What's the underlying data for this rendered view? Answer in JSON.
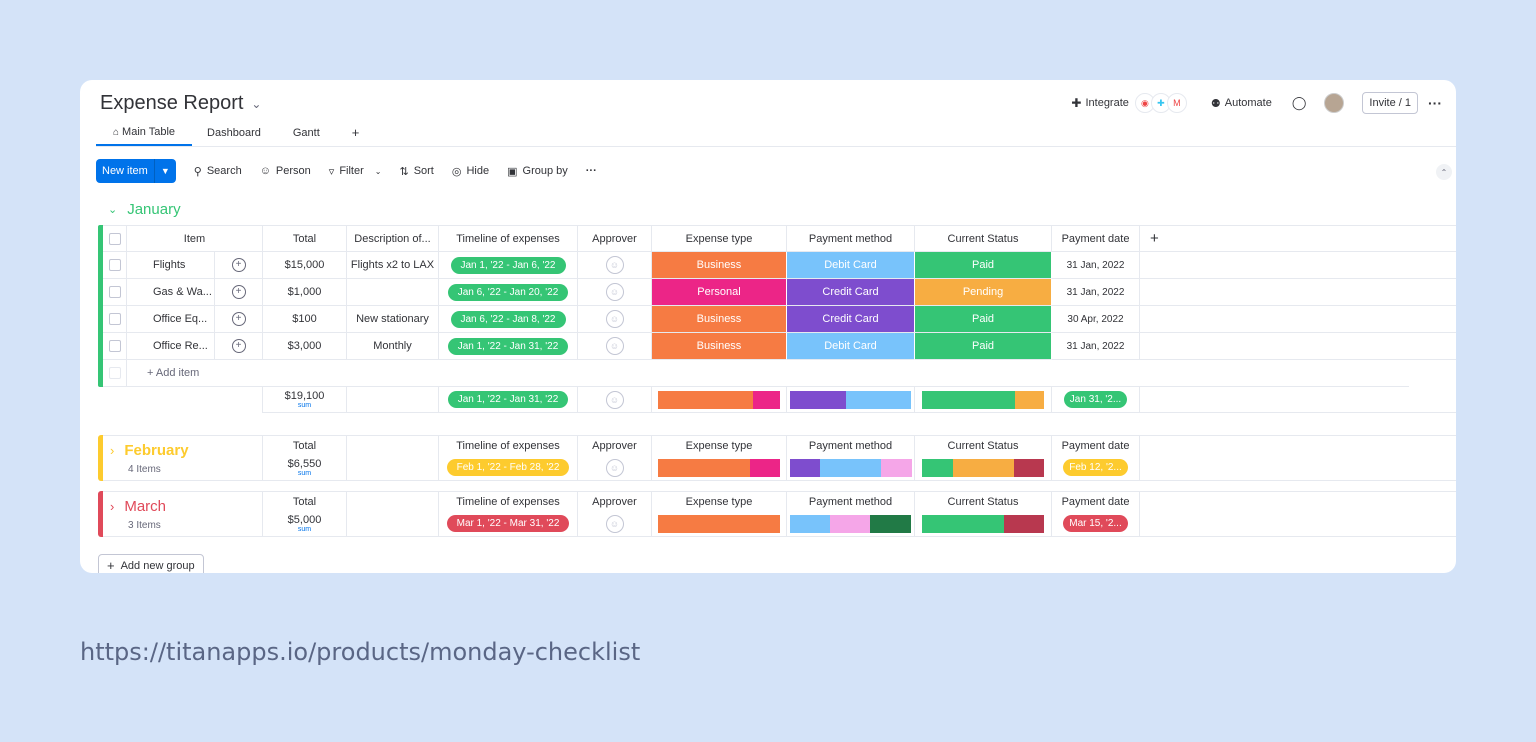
{
  "board": {
    "title": "Expense Report",
    "tabs": [
      "Main Table",
      "Dashboard",
      "Gantt",
      "+"
    ],
    "integrate_label": "Integrate",
    "automate_label": "Automate",
    "invite_label": "Invite / 1"
  },
  "toolbar": {
    "new_item": "New item",
    "search": "Search",
    "person": "Person",
    "filter": "Filter",
    "sort": "Sort",
    "hide": "Hide",
    "group_by": "Group by"
  },
  "columns": {
    "item": "Item",
    "total": "Total",
    "description": "Description of...",
    "timeline": "Timeline of expenses",
    "approver": "Approver",
    "expense_type": "Expense type",
    "payment_method": "Payment method",
    "status": "Current Status",
    "payment_date": "Payment date"
  },
  "colors": {
    "business": "#f67b43",
    "personal": "#ec2587",
    "debit": "#78c3fb",
    "credit": "#7e4dce",
    "paid": "#35c575",
    "pending": "#f7ad42",
    "january": "#35c575",
    "february": "#fdcb2e",
    "march": "#e04a5a",
    "pink_light": "#f5a6e8",
    "dark_green": "#217a46",
    "dark_red": "#b8384f"
  },
  "january": {
    "name": "January",
    "rows": [
      {
        "item": "Flights",
        "total": "$15,000",
        "desc": "Flights x2 to LAX",
        "timeline": "Jan 1, '22 - Jan 6, '22",
        "type": "Business",
        "method": "Debit Card",
        "status": "Paid",
        "date": "31 Jan, 2022"
      },
      {
        "item": "Gas & Wa...",
        "total": "$1,000",
        "desc": "",
        "timeline": "Jan 6, '22 - Jan 20, '22",
        "type": "Personal",
        "method": "Credit Card",
        "status": "Pending",
        "date": "31 Jan, 2022"
      },
      {
        "item": "Office Eq...",
        "total": "$100",
        "desc": "New stationary",
        "timeline": "Jan 6, '22 - Jan 8, '22",
        "type": "Business",
        "method": "Credit Card",
        "status": "Paid",
        "date": "30 Apr, 2022"
      },
      {
        "item": "Office Re...",
        "total": "$3,000",
        "desc": "Monthly",
        "timeline": "Jan 1, '22 - Jan 31, '22",
        "type": "Business",
        "method": "Debit Card",
        "status": "Paid",
        "date": "31 Jan, 2022"
      }
    ],
    "add_item": "+ Add item",
    "sum": "$19,100",
    "sum_label": "sum",
    "timeline_summary": "Jan 1, '22 - Jan 31, '22",
    "date_summary": "Jan 31, '2...",
    "type_shares": [
      0.78,
      0.22
    ],
    "method_shares": [
      0.46,
      0.54
    ],
    "status_shares": [
      0.76,
      0.24
    ]
  },
  "february": {
    "name": "February",
    "count": "4 Items",
    "sum": "$6,550",
    "sum_label": "sum",
    "timeline_summary": "Feb 1, '22 - Feb 28, '22",
    "date_summary": "Feb 12, '2...",
    "type_shares": [
      0.75,
      0.25
    ],
    "method_shares": [
      0.25,
      0.5,
      0.25
    ],
    "status_shares": [
      0.25,
      0.5,
      0.25
    ]
  },
  "march": {
    "name": "March",
    "count": "3 Items",
    "sum": "$5,000",
    "sum_label": "sum",
    "timeline_summary": "Mar 1, '22 - Mar 31, '22",
    "date_summary": "Mar 15, '2...",
    "type_shares": [
      1.0
    ],
    "method_shares": [
      0.33,
      0.33,
      0.34
    ],
    "status_shares": [
      0.67,
      0.33
    ]
  },
  "add_group": "Add new group",
  "url": "https://titanapps.io/products/monday-checklist"
}
